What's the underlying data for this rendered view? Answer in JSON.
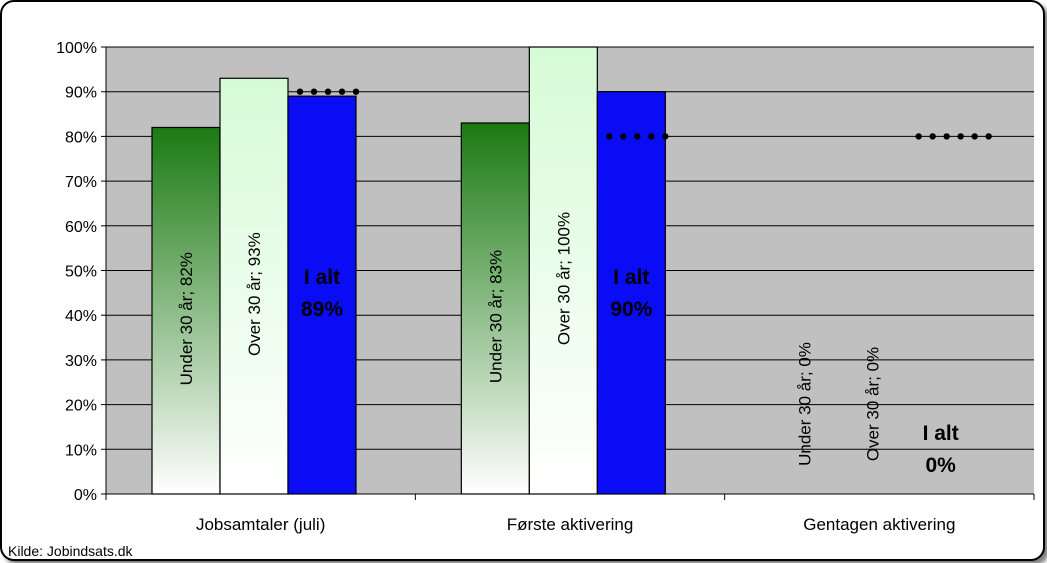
{
  "chart_data": {
    "type": "bar",
    "categories": [
      "Jobsamtaler (juli)",
      "Første aktivering",
      "Gentagen aktivering"
    ],
    "series": [
      {
        "name": "Under 30 år",
        "values": [
          82,
          83,
          0
        ],
        "labels": [
          "Under 30 år; 82%",
          "Under 30 år; 83%",
          "Under 30 år; 0%"
        ],
        "color": "#1b7a12"
      },
      {
        "name": "Over 30 år",
        "values": [
          93,
          100,
          0
        ],
        "labels": [
          "Over 30 år; 93%",
          "Over 30 år; 100%",
          "Over 30 år; 0%"
        ],
        "color": "#d6fbd6"
      },
      {
        "name": "I alt",
        "values": [
          89,
          90,
          0
        ],
        "labels": [
          "I alt\n89%",
          "I alt\n90%",
          "I alt\n0%"
        ],
        "color": "#0a0cf5"
      }
    ],
    "targets": [
      90,
      80,
      80
    ],
    "yticks": [
      "0%",
      "10%",
      "20%",
      "30%",
      "40%",
      "50%",
      "60%",
      "70%",
      "80%",
      "90%",
      "100%"
    ],
    "ylim": [
      0,
      100
    ],
    "grid": true,
    "plot_background": "#c0c0c0",
    "legend": "none"
  },
  "source": "Kilde: Jobindsats.dk"
}
